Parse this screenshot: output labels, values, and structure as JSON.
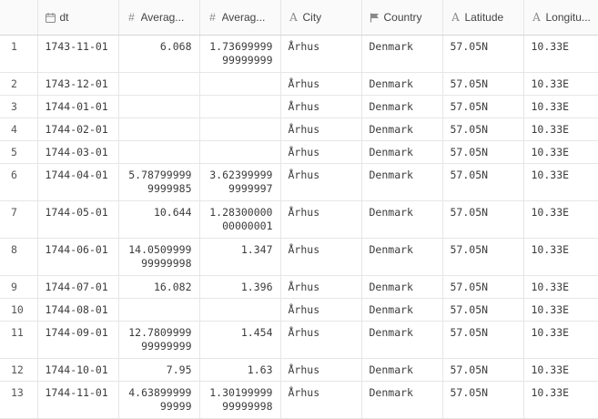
{
  "columns": [
    {
      "label": "",
      "icon": ""
    },
    {
      "label": "dt",
      "icon": "calendar-icon"
    },
    {
      "label": "Averag...",
      "icon": "hash-icon"
    },
    {
      "label": "Averag...",
      "icon": "hash-icon"
    },
    {
      "label": "City",
      "icon": "text-type-icon"
    },
    {
      "label": "Country",
      "icon": "flag-icon"
    },
    {
      "label": "Latitude",
      "icon": "text-type-icon"
    },
    {
      "label": "Longitu...",
      "icon": "text-type-icon"
    }
  ],
  "rows": [
    {
      "index": "1",
      "dt": "1743-11-01",
      "avg1": "6.068",
      "avg2": "1.7369999999999999",
      "city": "Århus",
      "country": "Denmark",
      "lat": "57.05N",
      "lon": "10.33E"
    },
    {
      "index": "2",
      "dt": "1743-12-01",
      "avg1": "",
      "avg2": "",
      "city": "Århus",
      "country": "Denmark",
      "lat": "57.05N",
      "lon": "10.33E"
    },
    {
      "index": "3",
      "dt": "1744-01-01",
      "avg1": "",
      "avg2": "",
      "city": "Århus",
      "country": "Denmark",
      "lat": "57.05N",
      "lon": "10.33E"
    },
    {
      "index": "4",
      "dt": "1744-02-01",
      "avg1": "",
      "avg2": "",
      "city": "Århus",
      "country": "Denmark",
      "lat": "57.05N",
      "lon": "10.33E"
    },
    {
      "index": "5",
      "dt": "1744-03-01",
      "avg1": "",
      "avg2": "",
      "city": "Århus",
      "country": "Denmark",
      "lat": "57.05N",
      "lon": "10.33E"
    },
    {
      "index": "6",
      "dt": "1744-04-01",
      "avg1": "5.787999999999985",
      "avg2": "3.623999999999997",
      "city": "Århus",
      "country": "Denmark",
      "lat": "57.05N",
      "lon": "10.33E"
    },
    {
      "index": "7",
      "dt": "1744-05-01",
      "avg1": "10.644",
      "avg2": "1.2830000000000001",
      "city": "Århus",
      "country": "Denmark",
      "lat": "57.05N",
      "lon": "10.33E"
    },
    {
      "index": "8",
      "dt": "1744-06-01",
      "avg1": "14.050999999999998",
      "avg2": "1.347",
      "city": "Århus",
      "country": "Denmark",
      "lat": "57.05N",
      "lon": "10.33E"
    },
    {
      "index": "9",
      "dt": "1744-07-01",
      "avg1": "16.082",
      "avg2": "1.396",
      "city": "Århus",
      "country": "Denmark",
      "lat": "57.05N",
      "lon": "10.33E"
    },
    {
      "index": "10",
      "dt": "1744-08-01",
      "avg1": "",
      "avg2": "",
      "city": "Århus",
      "country": "Denmark",
      "lat": "57.05N",
      "lon": "10.33E"
    },
    {
      "index": "11",
      "dt": "1744-09-01",
      "avg1": "12.780999999999999",
      "avg2": "1.454",
      "city": "Århus",
      "country": "Denmark",
      "lat": "57.05N",
      "lon": "10.33E"
    },
    {
      "index": "12",
      "dt": "1744-10-01",
      "avg1": "7.95",
      "avg2": "1.63",
      "city": "Århus",
      "country": "Denmark",
      "lat": "57.05N",
      "lon": "10.33E"
    },
    {
      "index": "13",
      "dt": "1744-11-01",
      "avg1": "4.6389999999999",
      "avg2": "1.3019999999999998",
      "city": "Århus",
      "country": "Denmark",
      "lat": "57.05N",
      "lon": "10.33E"
    }
  ]
}
